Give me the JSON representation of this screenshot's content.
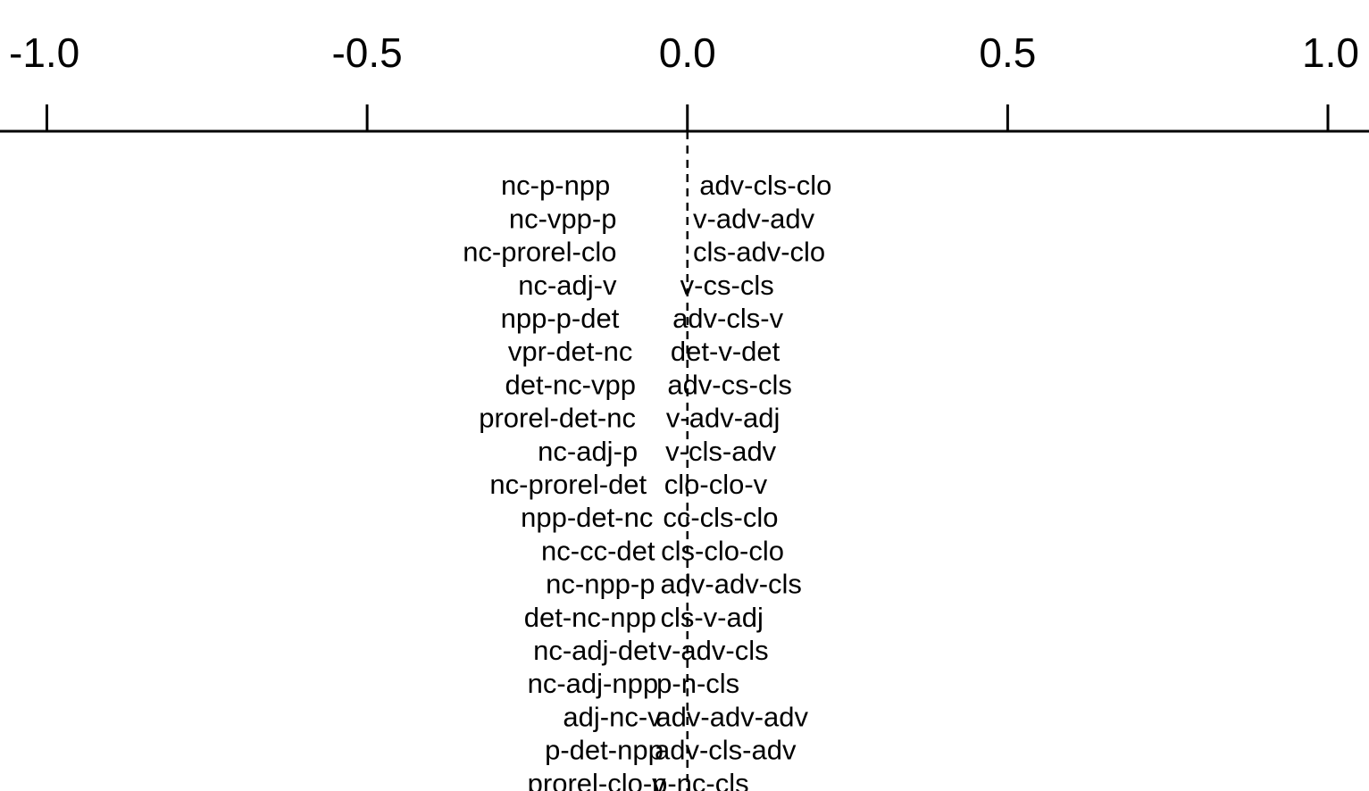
{
  "chart_data": {
    "type": "text-scatter",
    "xlim": [
      -1.0,
      1.0
    ],
    "x_ticks": [
      {
        "value": -1.0,
        "label": "-1.0"
      },
      {
        "value": -0.5,
        "label": "-0.5"
      },
      {
        "value": 0.0,
        "label": "0.0"
      },
      {
        "value": 0.5,
        "label": "0.5"
      },
      {
        "value": 1.0,
        "label": "1.0"
      }
    ],
    "axis_position": "top",
    "reference_line": {
      "x": 0.0,
      "style": "dashed"
    },
    "grid": false,
    "legend": "none",
    "negative": [
      {
        "label": "nc-p-npp",
        "x": -0.2
      },
      {
        "label": "nc-vpp-p",
        "x": -0.19
      },
      {
        "label": "nc-prorel-clo",
        "x": -0.19
      },
      {
        "label": "nc-adj-v",
        "x": -0.19
      },
      {
        "label": "npp-p-det",
        "x": -0.186
      },
      {
        "label": "vpr-det-nc",
        "x": -0.165
      },
      {
        "label": "det-nc-vpp",
        "x": -0.16
      },
      {
        "label": "prorel-det-nc",
        "x": -0.16
      },
      {
        "label": "nc-adj-p",
        "x": -0.157
      },
      {
        "label": "nc-prorel-det",
        "x": -0.143
      },
      {
        "label": "npp-det-nc",
        "x": -0.133
      },
      {
        "label": "nc-cc-det",
        "x": -0.13
      },
      {
        "label": "nc-npp-p",
        "x": -0.13
      },
      {
        "label": "det-nc-npp",
        "x": -0.128
      },
      {
        "label": "nc-adj-det",
        "x": -0.128
      },
      {
        "label": "nc-adj-npp",
        "x": -0.125
      },
      {
        "label": "adj-nc-v",
        "x": -0.12
      },
      {
        "label": "p-det-npp",
        "x": -0.117
      },
      {
        "label": "prorel-clo-v",
        "x": -0.113
      }
    ],
    "positive": [
      {
        "label": "adv-cls-clo",
        "x": 0.2
      },
      {
        "label": "v-adv-adv",
        "x": 0.19
      },
      {
        "label": "cls-adv-clo",
        "x": 0.19
      },
      {
        "label": "v-cs-cls",
        "x": 0.17
      },
      {
        "label": "adv-cls-v",
        "x": 0.158
      },
      {
        "label": "det-v-det",
        "x": 0.155
      },
      {
        "label": "adv-cs-cls",
        "x": 0.15
      },
      {
        "label": "v-adv-adj",
        "x": 0.148
      },
      {
        "label": "v-cls-adv",
        "x": 0.147
      },
      {
        "label": "clo-clo-v",
        "x": 0.145
      },
      {
        "label": "cc-cls-clo",
        "x": 0.143
      },
      {
        "label": "cls-clo-clo",
        "x": 0.14
      },
      {
        "label": "adv-adv-cls",
        "x": 0.139
      },
      {
        "label": "cls-v-adj",
        "x": 0.139
      },
      {
        "label": "v-adv-cls",
        "x": 0.135
      },
      {
        "label": "p-n-cls",
        "x": 0.133
      },
      {
        "label": "adv-adv-adv",
        "x": 0.132
      },
      {
        "label": "adv-cls-adv",
        "x": 0.13
      },
      {
        "label": "p-nc-cls",
        "x": 0.126
      }
    ]
  }
}
